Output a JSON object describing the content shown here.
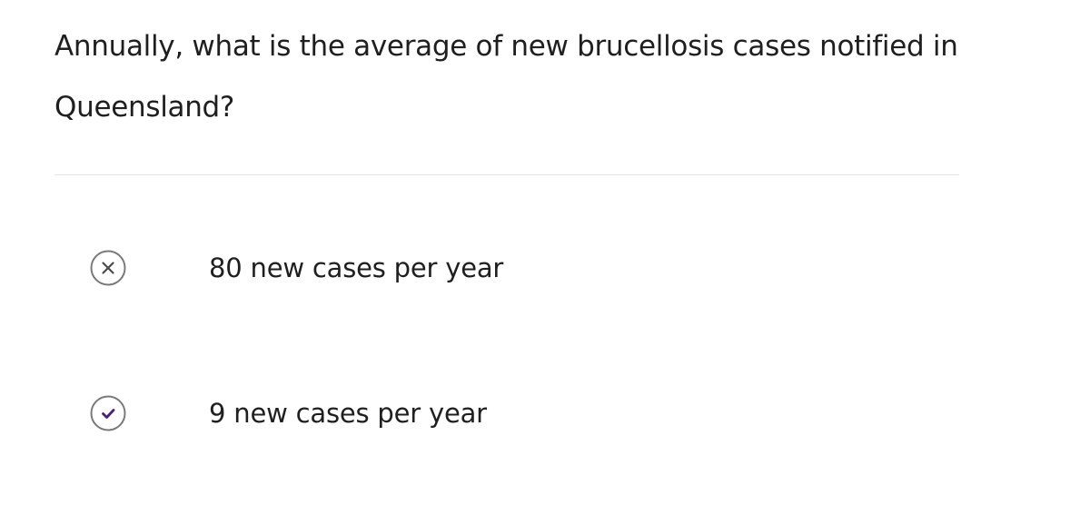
{
  "question": {
    "text": "Annually, what is the average of new brucellosis cases notified in Queensland?"
  },
  "options": [
    {
      "label": "80 new cases per year",
      "status": "incorrect",
      "icon": "x-circle-icon",
      "icon_color": "#666666"
    },
    {
      "label": "9 new cases per year",
      "status": "correct",
      "icon": "check-circle-icon",
      "icon_color": "#4a2270"
    }
  ],
  "colors": {
    "text": "#1f1f1f",
    "divider": "#e3e3e3",
    "icon_border": "#7a7a7a",
    "correct_accent": "#4a2270"
  }
}
